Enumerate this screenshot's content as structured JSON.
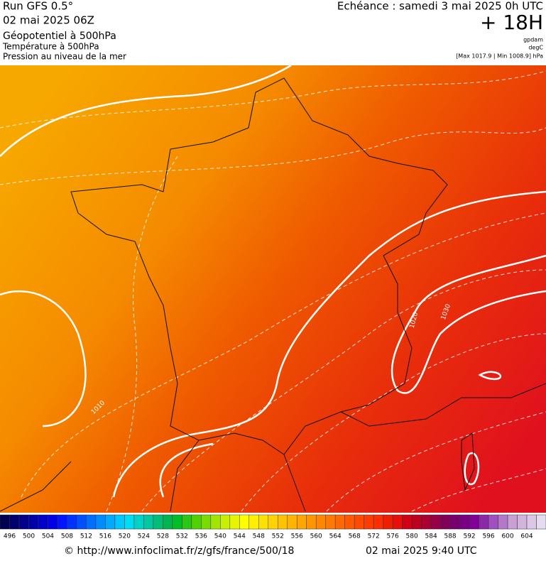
{
  "header": {
    "run": "Run GFS 0.5°",
    "date": "02 mai 2025 06Z",
    "layer1": "Géopotentiel à 500hPa",
    "layer2": "Température à 500hPa",
    "layer3": "Pression au niveau de la mer",
    "echeance": "Echéance : samedi 3 mai 2025 0h UTC",
    "lead": "+ 18H",
    "unit1": "gpdam",
    "unit2": "degC",
    "range": "[Max 1017.9 | Min 1008.9] hPa"
  },
  "contour_labels": [
    "1020",
    "1030",
    "1010"
  ],
  "colorbar": {
    "labels": [
      496,
      500,
      504,
      508,
      512,
      516,
      520,
      524,
      528,
      532,
      536,
      540,
      544,
      548,
      552,
      556,
      560,
      564,
      568,
      572,
      576,
      580,
      584,
      588,
      592,
      596,
      600,
      604
    ],
    "colors": [
      "#000050",
      "#00006e",
      "#00008c",
      "#0000aa",
      "#0000c8",
      "#0000e6",
      "#0014ff",
      "#0032ff",
      "#0050ff",
      "#006eff",
      "#008cff",
      "#00aaff",
      "#00c8ff",
      "#00dcf0",
      "#00d2c8",
      "#00c8a0",
      "#00be78",
      "#00b450",
      "#00be28",
      "#28c814",
      "#50d200",
      "#78dc00",
      "#a0e600",
      "#c8f000",
      "#e6f500",
      "#ffff00",
      "#fff000",
      "#ffe100",
      "#ffd200",
      "#ffc300",
      "#ffb400",
      "#ffa500",
      "#ff9600",
      "#ff8700",
      "#ff7800",
      "#ff6900",
      "#ff5a00",
      "#ff4b00",
      "#ff3c00",
      "#ff2d00",
      "#f01e00",
      "#e60f0a",
      "#d20014",
      "#be001e",
      "#aa0032",
      "#960046",
      "#82005a",
      "#78006e",
      "#780082",
      "#820096",
      "#8c28aa",
      "#a050be",
      "#b478c8",
      "#c8a0d2",
      "#d2b4dc",
      "#dcc8e6",
      "#e6dcf0"
    ]
  },
  "footer": {
    "url": "© http://www.infoclimat.fr/z/gfs/france/500/18",
    "issued": "02 mai 2025  9:40 UTC"
  }
}
